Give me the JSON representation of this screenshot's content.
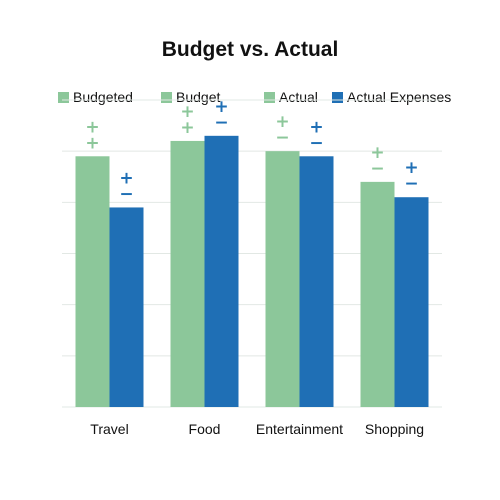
{
  "colors": {
    "budget": "#8cc79a",
    "actual": "#1f6fb5",
    "gridline": "#e2e8e4",
    "text": "#111111"
  },
  "legend": [
    {
      "label": "Budgeted",
      "color": "#8cc79a"
    },
    {
      "label": "Budget",
      "color": "#8cc79a"
    },
    {
      "label": "Actual",
      "color": "#8cc79a"
    },
    {
      "label": "Actual Expenses",
      "color": "#1f6fb5"
    }
  ],
  "chart_data": {
    "type": "bar",
    "title": "Budget vs. Actual",
    "categories": [
      "Travel",
      "Food",
      "Entertainment",
      "Shopping"
    ],
    "series": [
      {
        "values": [
          49,
          52,
          50,
          44
        ]
      },
      {
        "values": [
          39,
          53,
          49,
          41
        ]
      }
    ],
    "ylim": [
      0,
      60
    ],
    "grid": true,
    "legend_position": "top",
    "markers": [
      [
        [
          "+",
          "+"
        ],
        [
          "+",
          "−"
        ]
      ],
      [
        [
          "+",
          "+"
        ],
        [
          "+",
          "−"
        ]
      ],
      [
        [
          "+",
          "−"
        ],
        [
          "+",
          "−"
        ]
      ],
      [
        [
          "+",
          "−"
        ],
        [
          "+",
          "−"
        ]
      ]
    ]
  }
}
